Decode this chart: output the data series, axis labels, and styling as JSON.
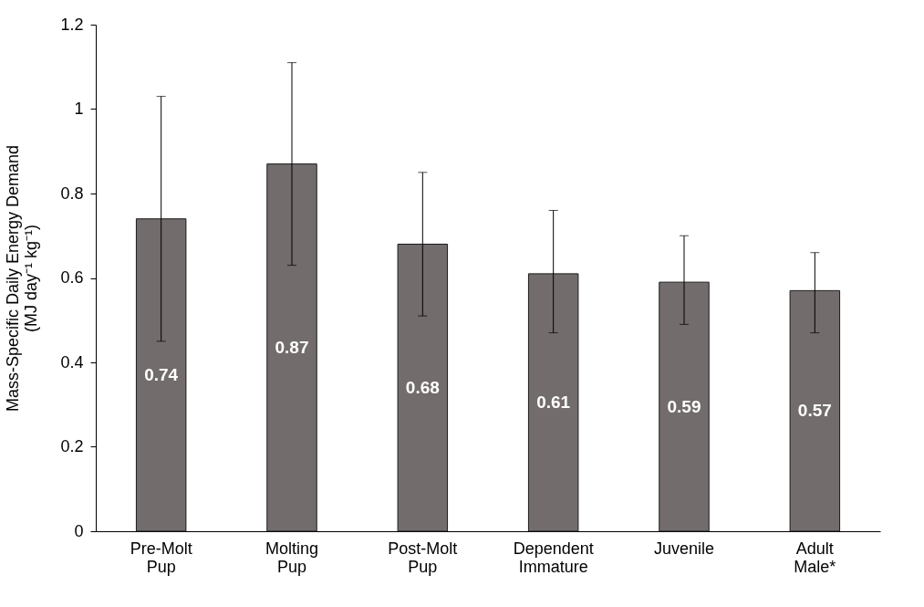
{
  "chart_data": {
    "type": "bar",
    "ylabel": "Mass-Specific Daily Energy Demand\n(MJ day⁻¹ kg⁻¹)",
    "categories": [
      "Pre-Molt Pup",
      "Molting Pup",
      "Post-Molt Pup",
      "Dependent Immature",
      "Juvenile",
      "Adult Male*"
    ],
    "values": [
      0.74,
      0.87,
      0.68,
      0.61,
      0.59,
      0.57
    ],
    "errors": [
      [
        0.45,
        1.03
      ],
      [
        0.63,
        1.11
      ],
      [
        0.51,
        0.85
      ],
      [
        0.47,
        0.76
      ],
      [
        0.49,
        0.7
      ],
      [
        0.47,
        0.66
      ]
    ],
    "color": "#726c6c",
    "data_labels": true,
    "grid": false,
    "ylim": [
      0,
      1.2
    ],
    "yticks": [
      0,
      0.2,
      0.4,
      0.6,
      0.8,
      1,
      1.2
    ]
  }
}
